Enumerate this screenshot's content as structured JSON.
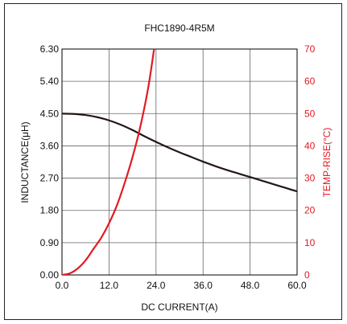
{
  "chart_data": {
    "type": "line",
    "title": "FHC1890-4R5M",
    "xlabel": "DC CURRENT(A)",
    "ylabel": "INDUCTANCE(μH)",
    "y2label": "TEMP-RISE(°C)",
    "xlim": [
      0,
      60
    ],
    "ylim": [
      0,
      6.3
    ],
    "y2lim": [
      0,
      70
    ],
    "x_ticks": [
      "0.0",
      "12.0",
      "24.0",
      "36.0",
      "48.0",
      "60.0"
    ],
    "y_ticks": [
      "0.00",
      "0.90",
      "1.80",
      "2.70",
      "3.60",
      "4.50",
      "5.40",
      "6.30"
    ],
    "y2_ticks": [
      "0",
      "10",
      "20",
      "30",
      "40",
      "50",
      "60",
      "70"
    ],
    "grid": true,
    "series": [
      {
        "axis": "left",
        "color": "#231815",
        "x": [
          0,
          3,
          6,
          9,
          12,
          15,
          18,
          21,
          24,
          27,
          30,
          33,
          36,
          39,
          42,
          45,
          48,
          51,
          54,
          57,
          60
        ],
        "values": [
          4.5,
          4.49,
          4.46,
          4.4,
          4.31,
          4.19,
          4.04,
          3.87,
          3.71,
          3.56,
          3.42,
          3.29,
          3.16,
          3.04,
          2.93,
          2.83,
          2.73,
          2.63,
          2.53,
          2.43,
          2.33
        ]
      },
      {
        "axis": "right",
        "color": "#e11b22",
        "x": [
          0,
          2,
          4,
          6,
          8,
          10,
          12,
          14,
          16,
          18,
          20,
          22,
          23.5
        ],
        "values": [
          0,
          0.5,
          2,
          4.5,
          8,
          11.5,
          16,
          21.5,
          28.5,
          36.5,
          46,
          58,
          70
        ]
      }
    ]
  }
}
